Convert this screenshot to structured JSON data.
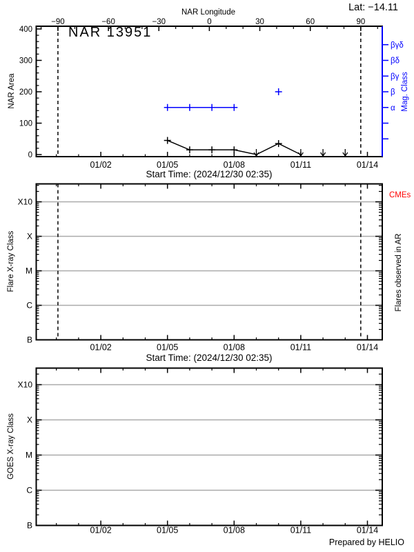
{
  "header": {
    "lat_label": "Lat: −14.11"
  },
  "footer": {
    "credit": "Prepared by HELIO"
  },
  "colors": {
    "axis": "#000000",
    "mag_class": "#0000ff",
    "cme": "#ff0000",
    "grid": "#aaaaaa",
    "background": "#ffffff"
  },
  "chart_data": [
    {
      "panel": "nar-area",
      "type": "line",
      "title": "NAR 13951",
      "ylabel": "NAR Area",
      "xlabel": "Start Time: (2024/12/30 02:35)",
      "ylim": [
        0,
        400
      ],
      "yticks": [
        0,
        100,
        200,
        300,
        400
      ],
      "y_minor_step": 20,
      "xticks": [
        {
          "day": 2,
          "label": "01/02"
        },
        {
          "day": 5,
          "label": "01/05"
        },
        {
          "day": 8,
          "label": "01/08"
        },
        {
          "day": 11,
          "label": "01/11"
        },
        {
          "day": 14,
          "label": "01/14"
        }
      ],
      "top_axis": {
        "label": "NAR Longitude",
        "ticks": [
          -90,
          -60,
          -30,
          0,
          30,
          60,
          90
        ],
        "minor_step": 10
      },
      "right_axis": {
        "label": "Mag. Class",
        "ticks": [
          {
            "value": 150,
            "label": "α"
          },
          {
            "value": 200,
            "label": "β"
          },
          {
            "value": 250,
            "label": "βγ"
          },
          {
            "value": 300,
            "label": "βδ"
          },
          {
            "value": 350,
            "label": "βγδ"
          }
        ],
        "unlabeled_tick_values": [
          50,
          100
        ]
      },
      "limb_lines_longitude": [
        -90,
        90
      ],
      "series": [
        {
          "name": "nar-area-series",
          "color": "#000000",
          "marker": "plus",
          "connect": true,
          "points": [
            {
              "date": "01/05",
              "day": 5,
              "value": 45
            },
            {
              "date": "01/06",
              "day": 6,
              "value": 15
            },
            {
              "date": "01/07",
              "day": 7,
              "value": 15
            },
            {
              "date": "01/08",
              "day": 8,
              "value": 15
            },
            {
              "date": "01/09",
              "day": 9,
              "value": 0
            },
            {
              "date": "01/10",
              "day": 10,
              "value": 35
            },
            {
              "date": "01/11",
              "day": 11,
              "value": 0
            }
          ]
        },
        {
          "name": "mag-class-series",
          "color": "#0000ff",
          "marker": "plus",
          "connect": true,
          "points": [
            {
              "date": "01/05",
              "day": 5,
              "value": 150,
              "class": "α"
            },
            {
              "date": "01/06",
              "day": 6,
              "value": 150,
              "class": "α"
            },
            {
              "date": "01/07",
              "day": 7,
              "value": 150,
              "class": "α"
            },
            {
              "date": "01/08",
              "day": 8,
              "value": 150,
              "class": "α"
            }
          ]
        },
        {
          "name": "mag-class-isolated",
          "color": "#0000ff",
          "marker": "plus",
          "connect": false,
          "points": [
            {
              "date": "01/10",
              "day": 10,
              "value": 200,
              "class": "β"
            }
          ]
        }
      ],
      "down_arrows": {
        "color": "#000000",
        "value": 0,
        "days": [
          9,
          11,
          12,
          13
        ],
        "dates": [
          "01/09",
          "01/11",
          "01/12",
          "01/13"
        ]
      }
    },
    {
      "panel": "flare-xray",
      "type": "line",
      "scale": "log",
      "ylabel": "Flare X-ray Class",
      "xlabel": "Start Time: (2024/12/30 02:35)",
      "yticks": [
        "B",
        "C",
        "M",
        "X",
        "X10"
      ],
      "right_label": "Flares observed in AR",
      "cme_label": "CMEs",
      "xticks": [
        {
          "day": 2,
          "label": "01/02"
        },
        {
          "day": 5,
          "label": "01/05"
        },
        {
          "day": 8,
          "label": "01/08"
        },
        {
          "day": 11,
          "label": "01/11"
        },
        {
          "day": 14,
          "label": "01/14"
        }
      ],
      "limb_lines_longitude": [
        -90,
        90
      ],
      "series": []
    },
    {
      "panel": "goes-xray",
      "type": "line",
      "scale": "log",
      "ylabel": "GOES X-ray Class",
      "xlabel": "",
      "yticks": [
        "B",
        "C",
        "M",
        "X",
        "X10"
      ],
      "xticks": [
        {
          "day": 2,
          "label": "01/02"
        },
        {
          "day": 5,
          "label": "01/05"
        },
        {
          "day": 8,
          "label": "01/08"
        },
        {
          "day": 11,
          "label": "01/11"
        },
        {
          "day": 14,
          "label": "01/14"
        }
      ],
      "series": []
    }
  ]
}
